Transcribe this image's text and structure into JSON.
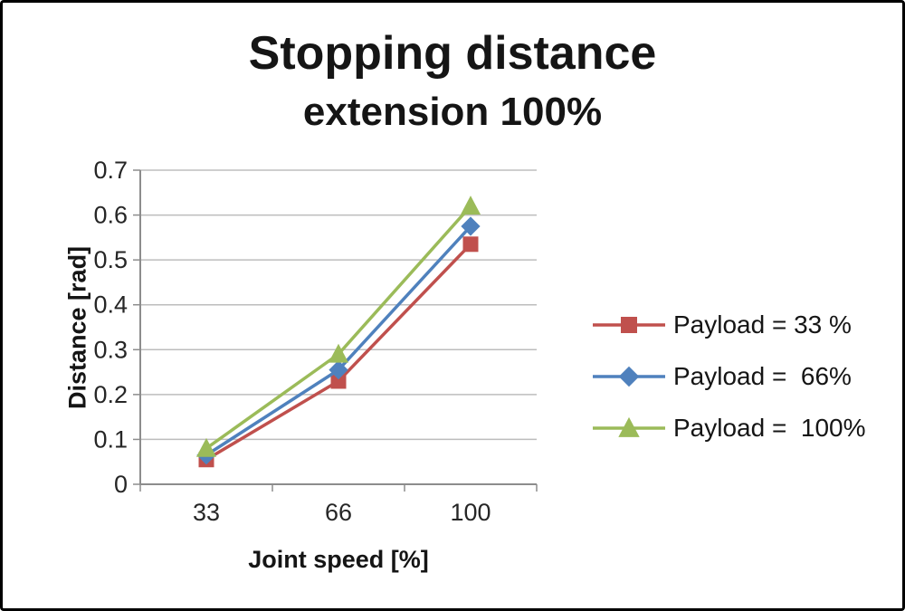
{
  "chart_data": {
    "type": "line",
    "title": "Stopping distance",
    "subtitle": "extension 100%",
    "xlabel": "Joint speed [%]",
    "ylabel": "Distance [rad]",
    "categories": [
      "33",
      "66",
      "100"
    ],
    "series": [
      {
        "name": "Payload = 33 %",
        "marker": "square",
        "color": "#c0504d",
        "values": [
          0.055,
          0.23,
          0.535
        ]
      },
      {
        "name": "Payload =  66%",
        "marker": "diamond",
        "color": "#4f81bd",
        "values": [
          0.065,
          0.255,
          0.575
        ]
      },
      {
        "name": "Payload =  100%",
        "marker": "triangle",
        "color": "#9bbb59",
        "values": [
          0.08,
          0.29,
          0.62
        ]
      }
    ],
    "ylim": [
      0,
      0.7
    ],
    "y_tick_labels": [
      "0",
      "0.1",
      "0.2",
      "0.3",
      "0.4",
      "0.5",
      "0.6",
      "0.7"
    ],
    "x_tick_labels": [
      "33",
      "66",
      "100"
    ],
    "grid": true,
    "legend_position": "right",
    "gridline_color": "#bdbdbd",
    "axis_color": "#8c8c8c",
    "tick_label_color": "#262626"
  }
}
